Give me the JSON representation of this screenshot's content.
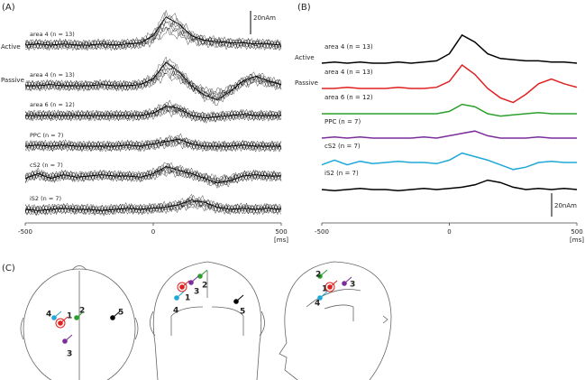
{
  "panels": {
    "a": "(A)",
    "b": "(B)",
    "c": "(C)"
  },
  "chart_data": {
    "type": "line",
    "x": [
      -500,
      -450,
      -400,
      -350,
      -300,
      -250,
      -200,
      -150,
      -100,
      -50,
      0,
      50,
      100,
      150,
      200,
      250,
      300,
      350,
      400,
      450,
      500
    ],
    "xlim": [
      -500,
      500
    ],
    "xticks": [
      -500,
      0,
      500
    ],
    "x_unit": "[ms]",
    "scale_bar": {
      "value": 20,
      "label": "20nAm"
    },
    "conditions": [
      "Active",
      "Passive"
    ],
    "series": [
      {
        "name": "area 4 (n = 13)",
        "color": "#000000",
        "values": [
          0,
          1,
          0,
          1,
          0,
          0,
          1,
          0,
          1,
          2,
          8,
          24,
          18,
          8,
          4,
          3,
          2,
          2,
          1,
          1,
          0
        ]
      },
      {
        "name": "area 4 (n = 13)",
        "color": "#e02020",
        "values": [
          0,
          0,
          1,
          0,
          0,
          0,
          1,
          0,
          0,
          1,
          6,
          20,
          12,
          0,
          -8,
          -12,
          -5,
          4,
          8,
          4,
          1
        ]
      },
      {
        "name": "area 6 (n = 12)",
        "color": "#2ca02c",
        "values": [
          0,
          0,
          0,
          0,
          0,
          0,
          0,
          0,
          0,
          0,
          2,
          8,
          6,
          0,
          -2,
          -1,
          0,
          1,
          0,
          0,
          0
        ]
      },
      {
        "name": "PPC (n = 7)",
        "color": "#7b2d9b",
        "values": [
          0,
          1,
          0,
          1,
          0,
          0,
          0,
          0,
          1,
          0,
          2,
          4,
          6,
          2,
          0,
          0,
          0,
          1,
          0,
          0,
          0
        ]
      },
      {
        "name": "cS2 (n = 7)",
        "color": "#1fa8d8",
        "values": [
          -2,
          2,
          -2,
          1,
          -1,
          0,
          1,
          0,
          0,
          -1,
          2,
          8,
          5,
          2,
          -2,
          -6,
          -4,
          0,
          1,
          0,
          0
        ]
      },
      {
        "name": "iS2 (n = 7)",
        "color": "#000000",
        "values": [
          0,
          -1,
          0,
          1,
          0,
          0,
          -1,
          0,
          1,
          0,
          1,
          2,
          4,
          8,
          6,
          2,
          0,
          1,
          0,
          1,
          0
        ]
      }
    ]
  },
  "head_diagram": {
    "dipoles": [
      {
        "label": "1",
        "color": "#e02020"
      },
      {
        "label": "2",
        "color": "#2ca02c"
      },
      {
        "label": "3",
        "color": "#7b2d9b"
      },
      {
        "label": "4",
        "color": "#1fa8d8"
      },
      {
        "label": "5",
        "color": "#000000"
      }
    ]
  }
}
